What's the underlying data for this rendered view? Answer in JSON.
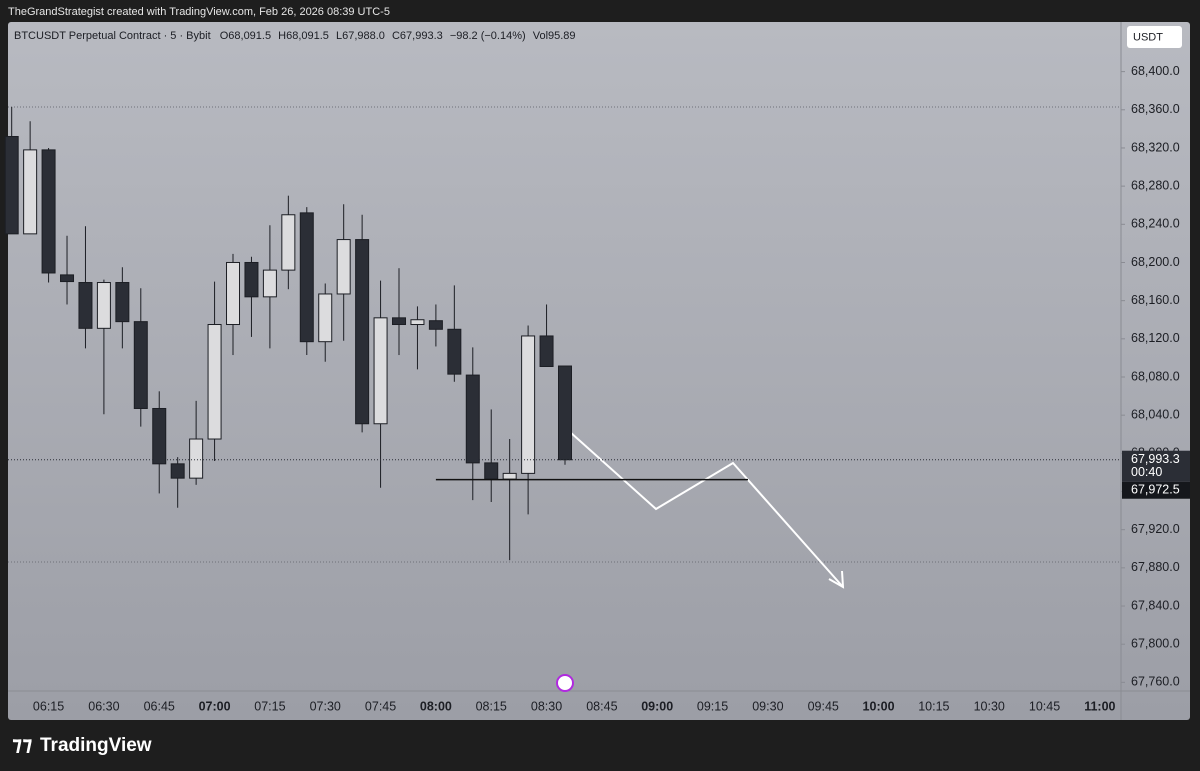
{
  "header": "TheGrandStrategist created with TradingView.com, Feb 26, 2026 08:39 UTC-5",
  "brand": "TradingView",
  "chart_data": {
    "type": "candlestick",
    "symbol": "BTCUSDT Perpetual Contract · 5 · Bybit",
    "ohlc_legend": [
      "O68,091.5",
      "H68,091.5",
      "L67,988.0",
      "C67,993.3",
      "−98.2 (−0.14%)",
      "Vol95.89"
    ],
    "currency": "USDT",
    "x": [
      "06:05",
      "06:10",
      "06:15",
      "06:20",
      "06:25",
      "06:30",
      "06:35",
      "06:40",
      "06:45",
      "06:50",
      "06:55",
      "07:00",
      "07:05",
      "07:10",
      "07:15",
      "07:20",
      "07:25",
      "07:30",
      "07:35",
      "07:40",
      "07:45",
      "07:50",
      "07:55",
      "08:00",
      "08:05",
      "08:10",
      "08:15",
      "08:20",
      "08:25",
      "08:30",
      "08:35"
    ],
    "open": [
      68332,
      68230,
      68318,
      68187,
      68179,
      68131,
      68179,
      68138,
      68047,
      67989,
      67974,
      68015,
      68135,
      68200,
      68164,
      68192,
      68252,
      68117,
      68167,
      68224,
      68031,
      68142,
      68135,
      68139,
      68130,
      68082,
      67990,
      67973,
      67979,
      68123,
      68091.5
    ],
    "high": [
      68363,
      68348,
      68320,
      68228,
      68238,
      68182,
      68195,
      68173,
      68065,
      67996,
      68055,
      68180,
      68209,
      68206,
      68239,
      68270,
      68258,
      68178,
      68261,
      68250,
      68181,
      68194,
      68154,
      68156,
      68176,
      68111,
      68046,
      68015,
      68134,
      68156,
      68091.5
    ],
    "low": [
      68230,
      68230,
      68179,
      68156,
      68110,
      68041,
      68110,
      68028,
      67958,
      67943,
      67967,
      67992,
      68103,
      68122,
      68110,
      68172,
      68103,
      68096,
      68118,
      68022,
      67964,
      68103,
      68088,
      68112,
      68075,
      67951,
      67949,
      67888,
      67936,
      68091,
      67988.0
    ],
    "close": [
      68230,
      68318,
      68189,
      68180,
      68131,
      68179,
      68138,
      68047,
      67989,
      67974,
      68015,
      68135,
      68200,
      68164,
      68192,
      68250,
      68117,
      68167,
      68224,
      68031,
      68142,
      68135,
      68140,
      68130,
      68083,
      67990,
      67973,
      67979,
      68123,
      68091,
      67993.3
    ],
    "up_color": "#dcdcde",
    "down_color": "#2b2e36",
    "xlim": [
      "06:04",
      "11:06"
    ],
    "xticks": [
      "06:15",
      "06:30",
      "06:45",
      "07:00",
      "07:15",
      "07:30",
      "07:45",
      "08:00",
      "08:15",
      "08:30",
      "08:45",
      "09:00",
      "09:15",
      "09:30",
      "09:45",
      "10:00",
      "10:15",
      "10:30",
      "10:45",
      "11:00"
    ],
    "ylim": [
      67752,
      68452
    ],
    "yticks": [
      {
        "value": 67760,
        "label": "67,760.0"
      },
      {
        "value": 67800,
        "label": "67,800.0"
      },
      {
        "value": 67840,
        "label": "67,840.0"
      },
      {
        "value": 67880,
        "label": "67,880.0"
      },
      {
        "value": 67920,
        "label": "67,920.0"
      },
      {
        "value": 67960,
        "label": "67,960.0"
      },
      {
        "value": 68000,
        "label": "68,000.0"
      },
      {
        "value": 68040,
        "label": "68,040.0"
      },
      {
        "value": 68080,
        "label": "68,080.0"
      },
      {
        "value": 68120,
        "label": "68,120.0"
      },
      {
        "value": 68160,
        "label": "68,160.0"
      },
      {
        "value": 68200,
        "label": "68,200.0"
      },
      {
        "value": 68240,
        "label": "68,240.0"
      },
      {
        "value": 68280,
        "label": "68,280.0"
      },
      {
        "value": 68320,
        "label": "68,320.0"
      },
      {
        "value": 68360,
        "label": "68,360.0"
      },
      {
        "value": 68400,
        "label": "68,400.0"
      }
    ],
    "last_price": {
      "value": 67993.3,
      "label": "67,993.3",
      "countdown": "00:40"
    },
    "hline": {
      "value": 67972.5,
      "label": "67,972.5"
    }
  }
}
